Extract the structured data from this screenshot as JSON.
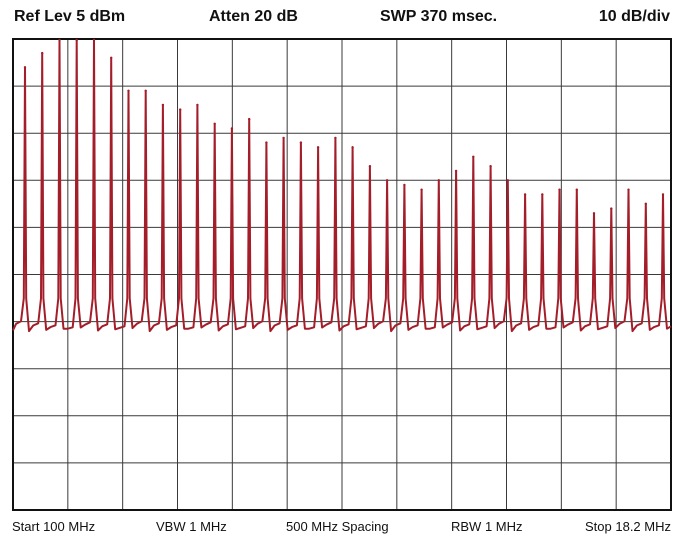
{
  "header": {
    "ref_level": "Ref Lev 5 dBm",
    "attenuation": "Atten 20 dB",
    "sweep": "SWP 370 msec.",
    "scale": "10 dB/div"
  },
  "footer": {
    "start": "Start 100 MHz",
    "vbw": "VBW 1 MHz",
    "spacing": "500 MHz Spacing",
    "rbw": "RBW 1 MHz",
    "stop": "Stop 18.2 MHz"
  },
  "colors": {
    "trace": "#a41e2a",
    "grid": "#3a3a3a",
    "frame": "#111111"
  },
  "chart_data": {
    "type": "line",
    "title": "",
    "xlabel": "",
    "ylabel": "",
    "reference_level_dbm": 5,
    "db_per_division": 10,
    "vertical_divisions": 10,
    "horizontal_divisions": 12,
    "ylim": [
      -95,
      5
    ],
    "grid": true,
    "noise_floor_dbm": -56,
    "series": [
      {
        "values": [
          -1,
          2,
          5,
          5,
          5,
          1,
          -6,
          -6,
          -9,
          -10,
          -9,
          -13,
          -14,
          -12,
          -17,
          -16,
          -17,
          -18,
          -16,
          -18,
          -22,
          -25,
          -26,
          -27,
          -25,
          -23,
          -20,
          -22,
          -25,
          -28,
          -28,
          -27,
          -27,
          -32,
          -31,
          -27,
          -30,
          -28
        ]
      }
    ]
  }
}
